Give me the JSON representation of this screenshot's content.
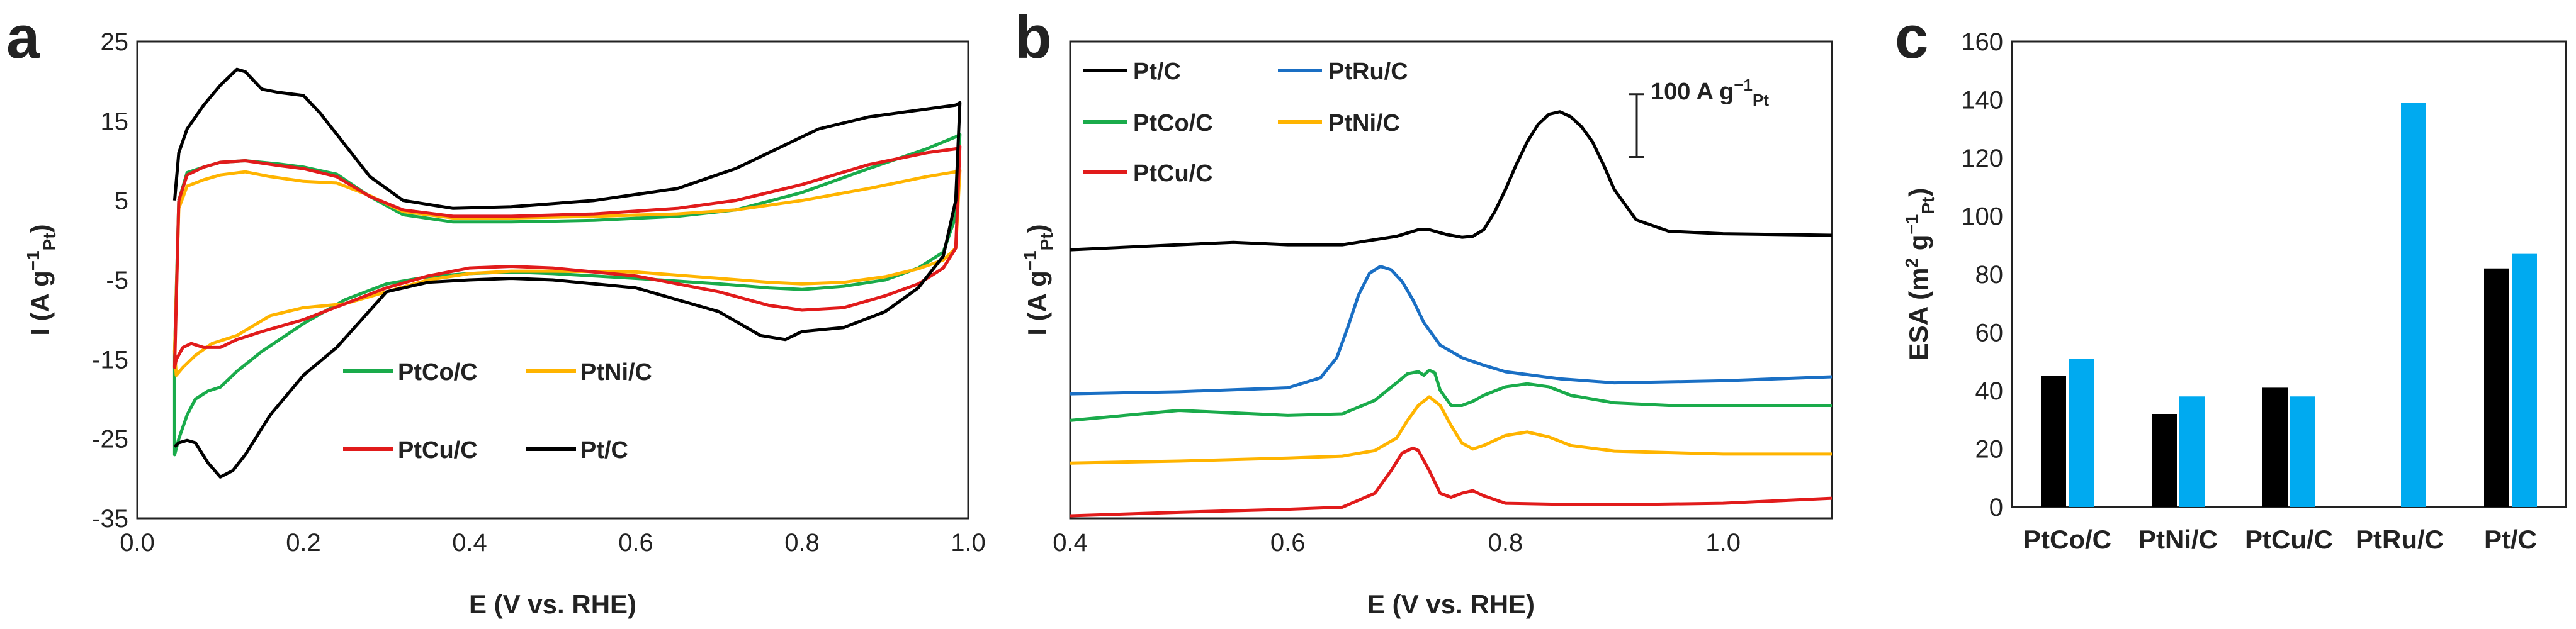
{
  "chart_data": [
    {
      "panel": "a",
      "type": "line",
      "xlabel": "E (V vs. RHE)",
      "ylabel": "I (A g⁻¹Pt)",
      "ylabel_parts": {
        "main": "I (A g",
        "sup": "−1",
        "sub": "Pt",
        "end": ")"
      },
      "xlim": [
        0.0,
        1.0
      ],
      "ylim": [
        -35,
        25
      ],
      "xticks": [
        0.0,
        0.2,
        0.4,
        0.6,
        0.8,
        1.0
      ],
      "xtick_labels": [
        "0.0",
        "0.2",
        "0.4",
        "0.6",
        "0.8",
        "1.0"
      ],
      "yticks": [
        -35,
        -25,
        -15,
        -5,
        5,
        15,
        25
      ],
      "ytick_labels": [
        "-35",
        "-25",
        "-15",
        "-5",
        "5",
        "15",
        "25"
      ],
      "series": [
        {
          "name": "PtCo/C",
          "color": "#1aab4b",
          "x": [
            0.05,
            0.06,
            0.08,
            0.1,
            0.13,
            0.17,
            0.2,
            0.24,
            0.28,
            0.32,
            0.38,
            0.45,
            0.55,
            0.65,
            0.72,
            0.8,
            0.88,
            0.95,
            0.985,
            0.99,
            0.985,
            0.97,
            0.94,
            0.9,
            0.85,
            0.8,
            0.76,
            0.7,
            0.6,
            0.5,
            0.45,
            0.4,
            0.35,
            0.3,
            0.25,
            0.2,
            0.15,
            0.12,
            0.1,
            0.085,
            0.07,
            0.06,
            0.05,
            0.045,
            0.045,
            0.05
          ],
          "y": [
            5,
            8.5,
            9.2,
            9.8,
            10,
            9.6,
            9.2,
            8.3,
            5.5,
            3.2,
            2.3,
            2.3,
            2.5,
            3.0,
            3.8,
            6,
            9,
            11.5,
            13,
            13.3,
            3,
            -1.5,
            -3.5,
            -5,
            -5.8,
            -6.2,
            -6.0,
            -5.5,
            -4.8,
            -4.2,
            -4,
            -4.2,
            -4.6,
            -5.5,
            -7.5,
            -10.5,
            -14,
            -16.5,
            -18.5,
            -19,
            -20,
            -22,
            -25,
            -27,
            -14,
            5
          ]
        },
        {
          "name": "PtNi/C",
          "color": "#ffb400",
          "x": [
            0.05,
            0.06,
            0.08,
            0.1,
            0.13,
            0.16,
            0.2,
            0.24,
            0.28,
            0.32,
            0.38,
            0.45,
            0.55,
            0.65,
            0.72,
            0.8,
            0.88,
            0.95,
            0.985,
            0.99,
            0.985,
            0.97,
            0.94,
            0.9,
            0.85,
            0.8,
            0.76,
            0.7,
            0.6,
            0.5,
            0.45,
            0.4,
            0.35,
            0.3,
            0.25,
            0.2,
            0.16,
            0.12,
            0.09,
            0.07,
            0.055,
            0.047,
            0.045,
            0.05
          ],
          "y": [
            4,
            6.8,
            7.6,
            8.2,
            8.6,
            8.0,
            7.4,
            7.2,
            5.6,
            3.6,
            2.8,
            2.8,
            3.0,
            3.3,
            3.8,
            5,
            6.5,
            8,
            8.6,
            8.8,
            -1,
            -2.5,
            -3.6,
            -4.6,
            -5.3,
            -5.5,
            -5.3,
            -4.8,
            -4.0,
            -3.9,
            -3.9,
            -4.2,
            -5.0,
            -6.5,
            -8,
            -8.5,
            -9.5,
            -12,
            -13,
            -14.5,
            -16,
            -17,
            -14,
            4
          ]
        },
        {
          "name": "PtCu/C",
          "color": "#e11b1b",
          "x": [
            0.05,
            0.06,
            0.08,
            0.1,
            0.13,
            0.17,
            0.2,
            0.24,
            0.28,
            0.32,
            0.38,
            0.45,
            0.55,
            0.65,
            0.72,
            0.8,
            0.88,
            0.95,
            0.985,
            0.99,
            0.985,
            0.97,
            0.94,
            0.9,
            0.85,
            0.8,
            0.76,
            0.7,
            0.6,
            0.5,
            0.45,
            0.4,
            0.35,
            0.3,
            0.25,
            0.2,
            0.15,
            0.12,
            0.1,
            0.08,
            0.065,
            0.055,
            0.047,
            0.045,
            0.05
          ],
          "y": [
            5,
            8.2,
            9.2,
            9.8,
            10,
            9.4,
            9.0,
            8.0,
            5.5,
            3.8,
            3.0,
            3.0,
            3.3,
            4,
            5,
            7,
            9.5,
            11,
            11.5,
            11.8,
            -1,
            -3.5,
            -5.5,
            -7,
            -8.5,
            -8.8,
            -8.2,
            -6.5,
            -4.5,
            -3.5,
            -3.3,
            -3.5,
            -4.5,
            -6,
            -8,
            -10,
            -11.5,
            -12.5,
            -13.5,
            -13.5,
            -13,
            -13.5,
            -15,
            -16,
            5
          ]
        },
        {
          "name": "Pt/C",
          "color": "#000000",
          "x": [
            0.045,
            0.05,
            0.06,
            0.08,
            0.1,
            0.12,
            0.13,
            0.15,
            0.17,
            0.2,
            0.22,
            0.25,
            0.28,
            0.32,
            0.38,
            0.45,
            0.55,
            0.65,
            0.72,
            0.78,
            0.82,
            0.88,
            0.95,
            0.985,
            0.99,
            0.985,
            0.97,
            0.94,
            0.9,
            0.85,
            0.8,
            0.78,
            0.75,
            0.7,
            0.6,
            0.5,
            0.45,
            0.4,
            0.35,
            0.3,
            0.27,
            0.24,
            0.2,
            0.16,
            0.13,
            0.115,
            0.1,
            0.085,
            0.07,
            0.06,
            0.05,
            0.045
          ],
          "y": [
            5,
            11,
            14,
            17,
            19.5,
            21.5,
            21.2,
            19,
            18.6,
            18.2,
            16,
            12,
            8,
            5,
            4,
            4.2,
            5,
            6.5,
            9,
            12,
            14,
            15.5,
            16.5,
            17,
            17.3,
            5,
            -2,
            -6,
            -9,
            -11,
            -11.5,
            -12.5,
            -12,
            -9,
            -6,
            -5,
            -4.8,
            -5,
            -5.3,
            -6.5,
            -10,
            -13.5,
            -17,
            -22,
            -27,
            -29,
            -29.8,
            -28,
            -25.5,
            -25.2,
            -25.5,
            -26
          ]
        }
      ],
      "legend": [
        {
          "label": "PtCo/C",
          "color": "#1aab4b"
        },
        {
          "label": "PtNi/C",
          "color": "#ffb400"
        },
        {
          "label": "PtCu/C",
          "color": "#e11b1b"
        },
        {
          "label": "Pt/C",
          "color": "#000000"
        }
      ]
    },
    {
      "panel": "b",
      "type": "line",
      "xlabel": "E (V vs. RHE)",
      "ylabel": "I (A g⁻¹Pt)",
      "ylabel_parts": {
        "main": "I (A g",
        "sup": "−1",
        "sub": "Pt",
        "end": ")"
      },
      "xlim": [
        0.4,
        1.1
      ],
      "ylim": [
        0,
        9.5
      ],
      "xticks": [
        0.4,
        0.6,
        0.8,
        1.0
      ],
      "xtick_labels": [
        "0.4",
        "0.6",
        "0.8",
        "1.0"
      ],
      "scale_bar": {
        "value": 100,
        "units_main": "A g",
        "units_sup": "−1",
        "units_sub": "Pt",
        "text": "100 A g⁻¹Pt",
        "y_from": 7.2,
        "y_to": 8.45
      },
      "series": [
        {
          "name": "Pt/C",
          "color": "#000000",
          "x": [
            0.4,
            0.5,
            0.55,
            0.6,
            0.65,
            0.7,
            0.72,
            0.73,
            0.745,
            0.76,
            0.77,
            0.78,
            0.79,
            0.8,
            0.81,
            0.82,
            0.83,
            0.84,
            0.85,
            0.86,
            0.87,
            0.88,
            0.89,
            0.9,
            0.92,
            0.95,
            1.0,
            1.1
          ],
          "y": [
            5.35,
            5.45,
            5.5,
            5.45,
            5.45,
            5.62,
            5.75,
            5.75,
            5.66,
            5.6,
            5.62,
            5.75,
            6.1,
            6.55,
            7.05,
            7.5,
            7.85,
            8.05,
            8.1,
            8.0,
            7.8,
            7.5,
            7.05,
            6.55,
            5.95,
            5.72,
            5.67,
            5.64
          ]
        },
        {
          "name": "PtRu/C",
          "color": "#1a6fc4",
          "x": [
            0.4,
            0.5,
            0.6,
            0.63,
            0.645,
            0.655,
            0.665,
            0.675,
            0.685,
            0.695,
            0.705,
            0.715,
            0.725,
            0.74,
            0.76,
            0.78,
            0.8,
            0.85,
            0.9,
            1.0,
            1.1
          ],
          "y": [
            2.48,
            2.52,
            2.6,
            2.8,
            3.2,
            3.8,
            4.45,
            4.88,
            5.02,
            4.95,
            4.72,
            4.35,
            3.9,
            3.45,
            3.2,
            3.05,
            2.92,
            2.78,
            2.7,
            2.74,
            2.82
          ]
        },
        {
          "name": "PtCo/C",
          "color": "#1aab4b",
          "x": [
            0.4,
            0.45,
            0.5,
            0.55,
            0.6,
            0.65,
            0.68,
            0.7,
            0.71,
            0.72,
            0.725,
            0.73,
            0.735,
            0.74,
            0.75,
            0.76,
            0.77,
            0.78,
            0.8,
            0.82,
            0.84,
            0.86,
            0.9,
            0.95,
            1.0,
            1.1
          ],
          "y": [
            1.95,
            2.05,
            2.15,
            2.1,
            2.05,
            2.08,
            2.35,
            2.7,
            2.88,
            2.92,
            2.85,
            2.95,
            2.9,
            2.55,
            2.25,
            2.25,
            2.33,
            2.45,
            2.62,
            2.68,
            2.62,
            2.45,
            2.3,
            2.25,
            2.25,
            2.25
          ]
        },
        {
          "name": "PtNi/C",
          "color": "#ffb400",
          "x": [
            0.4,
            0.5,
            0.6,
            0.65,
            0.68,
            0.7,
            0.71,
            0.72,
            0.73,
            0.74,
            0.75,
            0.76,
            0.77,
            0.78,
            0.8,
            0.82,
            0.84,
            0.86,
            0.9,
            1.0,
            1.1
          ],
          "y": [
            1.1,
            1.14,
            1.2,
            1.24,
            1.35,
            1.6,
            1.95,
            2.25,
            2.42,
            2.25,
            1.85,
            1.5,
            1.38,
            1.45,
            1.65,
            1.72,
            1.62,
            1.45,
            1.34,
            1.28,
            1.28
          ]
        },
        {
          "name": "PtCu/C",
          "color": "#e11b1b",
          "x": [
            0.4,
            0.5,
            0.6,
            0.65,
            0.68,
            0.695,
            0.705,
            0.715,
            0.72,
            0.73,
            0.74,
            0.75,
            0.76,
            0.77,
            0.78,
            0.8,
            0.85,
            0.9,
            1.0,
            1.1
          ],
          "y": [
            0.05,
            0.12,
            0.18,
            0.22,
            0.5,
            0.95,
            1.3,
            1.4,
            1.35,
            0.95,
            0.5,
            0.42,
            0.5,
            0.55,
            0.45,
            0.3,
            0.28,
            0.27,
            0.3,
            0.4
          ]
        }
      ],
      "legend": [
        {
          "label": "Pt/C",
          "color": "#000000"
        },
        {
          "label": "PtRu/C",
          "color": "#1a6fc4"
        },
        {
          "label": "PtCo/C",
          "color": "#1aab4b"
        },
        {
          "label": "PtNi/C",
          "color": "#ffb400"
        },
        {
          "label": "PtCu/C",
          "color": "#e11b1b"
        }
      ]
    },
    {
      "panel": "c",
      "type": "bar",
      "categories": [
        "PtCo/C",
        "PtNi/C",
        "PtCu/C",
        "PtRu/C",
        "Pt/C"
      ],
      "ylabel": "ESA (m² g⁻¹Pt)",
      "ylabel_parts": {
        "main": "ESA  (m",
        "sup1": "2",
        "mid": " g",
        "sup2": "−1",
        "sub": "Pt",
        "end": ")"
      },
      "ylim": [
        0,
        160
      ],
      "yticks": [
        0,
        20,
        40,
        60,
        80,
        100,
        120,
        140,
        160
      ],
      "ytick_labels": [
        "0",
        "20",
        "40",
        "60",
        "80",
        "100",
        "120",
        "140",
        "160"
      ],
      "series": [
        {
          "name": "series-black",
          "color": "#000000",
          "values": [
            45,
            32,
            41,
            null,
            82
          ]
        },
        {
          "name": "series-blue",
          "color": "#00aaf0",
          "values": [
            51,
            38,
            38,
            139,
            87
          ]
        }
      ]
    }
  ],
  "panels": {
    "a": "a",
    "b": "b",
    "c": "c"
  }
}
